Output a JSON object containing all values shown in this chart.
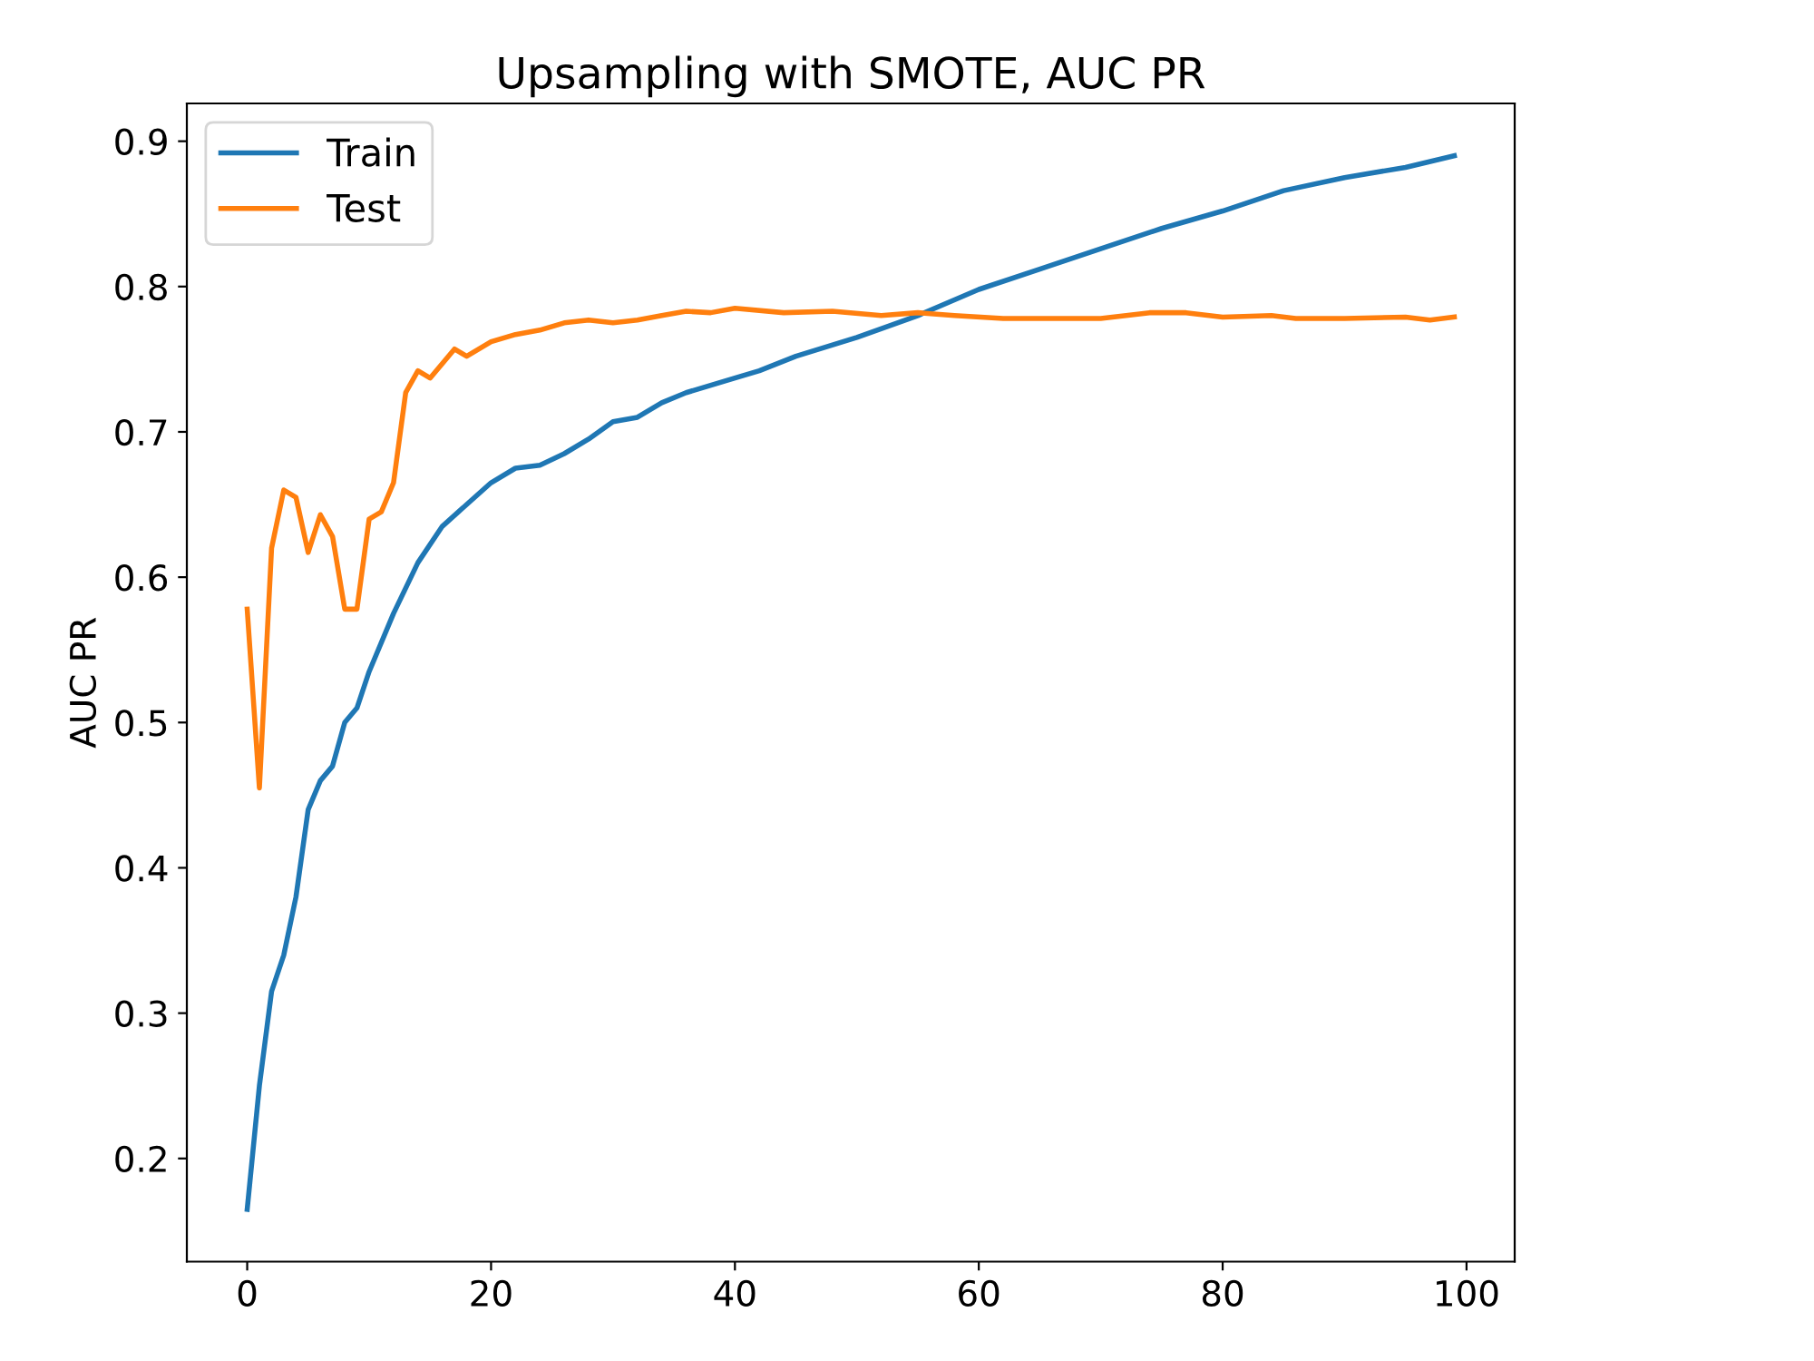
{
  "chart_data": {
    "type": "line",
    "title": "Upsampling with SMOTE, AUC PR",
    "ylabel": "AUC PR",
    "xlim": [
      -4.95,
      103.95
    ],
    "xticks": [
      0,
      20,
      40,
      60,
      80,
      100
    ],
    "ylim": [
      0.129,
      0.926
    ],
    "yticks": [
      0.2,
      0.3,
      0.4,
      0.5,
      0.6,
      0.7,
      0.8,
      0.9
    ],
    "legend": "top left",
    "grid": false,
    "series": [
      {
        "name": "Train",
        "color": "#1f77b4",
        "x": [
          0,
          1,
          2,
          3,
          4,
          5,
          6,
          7,
          8,
          9,
          10,
          12,
          14,
          16,
          18,
          20,
          22,
          24,
          26,
          28,
          30,
          32,
          34,
          36,
          40,
          42,
          45,
          50,
          55,
          60,
          65,
          70,
          75,
          80,
          85,
          90,
          95,
          99
        ],
        "values": [
          0.165,
          0.25,
          0.315,
          0.34,
          0.38,
          0.44,
          0.46,
          0.47,
          0.5,
          0.51,
          0.535,
          0.575,
          0.61,
          0.635,
          0.65,
          0.665,
          0.675,
          0.677,
          0.685,
          0.695,
          0.707,
          0.71,
          0.72,
          0.727,
          0.737,
          0.742,
          0.752,
          0.765,
          0.78,
          0.798,
          0.812,
          0.826,
          0.84,
          0.852,
          0.866,
          0.875,
          0.882,
          0.89
        ]
      },
      {
        "name": "Test",
        "color": "#ff7f0e",
        "x": [
          0,
          1,
          2,
          3,
          4,
          5,
          6,
          7,
          8,
          9,
          10,
          11,
          12,
          13,
          14,
          15,
          17,
          18,
          20,
          22,
          24,
          26,
          28,
          30,
          32,
          34,
          36,
          38,
          40,
          44,
          48,
          52,
          55,
          58,
          62,
          66,
          70,
          74,
          77,
          80,
          84,
          86,
          90,
          95,
          97,
          99
        ],
        "values": [
          0.578,
          0.455,
          0.62,
          0.66,
          0.655,
          0.617,
          0.643,
          0.628,
          0.578,
          0.578,
          0.64,
          0.645,
          0.665,
          0.727,
          0.742,
          0.737,
          0.757,
          0.752,
          0.762,
          0.767,
          0.77,
          0.775,
          0.777,
          0.775,
          0.777,
          0.78,
          0.783,
          0.782,
          0.785,
          0.782,
          0.783,
          0.78,
          0.782,
          0.78,
          0.778,
          0.778,
          0.778,
          0.782,
          0.782,
          0.779,
          0.78,
          0.778,
          0.778,
          0.779,
          0.777,
          0.779
        ]
      }
    ]
  }
}
